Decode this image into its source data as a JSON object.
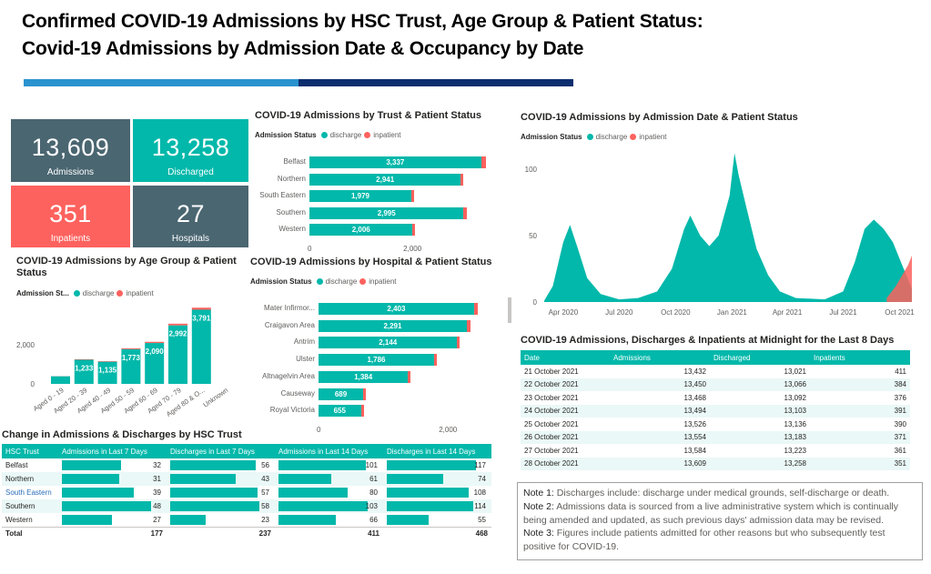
{
  "header": {
    "title_line1": "Confirmed COVID-19 Admissions by HSC Trust, Age Group & Patient Status:",
    "title_line2": "Covid-19 Admissions by Admission Date & Occupancy by Date"
  },
  "kpis": [
    {
      "value": "13,609",
      "label": "Admissions",
      "color": "#4a6671"
    },
    {
      "value": "13,258",
      "label": "Discharged",
      "color": "#01b8aa"
    },
    {
      "value": "351",
      "label": "Inpatients",
      "color": "#fd625e"
    },
    {
      "value": "27",
      "label": "Hospitals",
      "color": "#4a6671"
    }
  ],
  "legend": {
    "status_label": "Admission Status",
    "status_label_short": "Admission St...",
    "discharge": "discharge",
    "inpatient": "inpatient"
  },
  "colors": {
    "discharge": "#01b8aa",
    "inpatient": "#fd625e"
  },
  "chart_data": [
    {
      "type": "bar",
      "orientation": "horizontal",
      "title": "COVID-19 Admissions by Trust & Patient Status",
      "categories": [
        "Belfast",
        "Northern",
        "South Eastern",
        "Southern",
        "Western"
      ],
      "series": [
        {
          "name": "discharge",
          "values": [
            3337,
            2941,
            1979,
            2995,
            2006
          ]
        },
        {
          "name": "inpatient",
          "values": [
            95,
            50,
            40,
            72,
            36
          ]
        }
      ],
      "data_labels": [
        "3,337",
        "2,941",
        "1,979",
        "2,995",
        "2,006"
      ],
      "x_ticks": [
        "0",
        "2,000"
      ],
      "xlim": [
        0,
        3500
      ]
    },
    {
      "type": "bar",
      "orientation": "horizontal",
      "title": "COVID-19 Admissions by Hospital & Patient Status",
      "categories": [
        "Mater Infirmor...",
        "Craigavon Area",
        "Antrim",
        "Ulster",
        "Altnagelvin Area",
        "Causeway",
        "Royal Victoria"
      ],
      "series": [
        {
          "name": "discharge",
          "values": [
            2403,
            2291,
            2144,
            1786,
            1384,
            689,
            655
          ]
        },
        {
          "name": "inpatient",
          "values": [
            60,
            55,
            40,
            40,
            38,
            8,
            25
          ]
        }
      ],
      "data_labels": [
        "2,403",
        "2,291",
        "2,144",
        "1,786",
        "1,384",
        "689",
        "655"
      ],
      "x_ticks": [
        "0",
        "2,000"
      ],
      "xlim": [
        0,
        2700
      ]
    },
    {
      "type": "bar",
      "title": "COVID-19 Admissions by Age Group & Patient Status",
      "categories": [
        "Aged 0 - 19",
        "Aged 20 - 39",
        "Aged 40 - 49",
        "Aged 50 - 59",
        "Aged 60 - 69",
        "Aged 70 - 79",
        "Aged 80 & O...",
        "Unknown"
      ],
      "series": [
        {
          "name": "discharge",
          "values": [
            390,
            1233,
            1135,
            1773,
            2090,
            2992,
            3791,
            0
          ]
        },
        {
          "name": "inpatient",
          "values": [
            5,
            25,
            25,
            45,
            60,
            85,
            105,
            0
          ]
        }
      ],
      "data_labels": [
        "",
        "1,233",
        "1,135",
        "1,773",
        "2,090",
        "2,992",
        "3,791",
        ""
      ],
      "y_ticks": [
        "0",
        "2,000",
        "4,000"
      ],
      "ylim": [
        0,
        4000
      ]
    },
    {
      "type": "area",
      "title": "COVID-19 Admissions by Admission Date & Patient Status",
      "x_ticks": [
        "Apr 2020",
        "Jul 2020",
        "Oct 2020",
        "Jan 2021",
        "Apr 2021",
        "Jul 2021",
        "Oct 2021"
      ],
      "y_ticks": [
        "0",
        "50",
        "100"
      ],
      "ylim": [
        0,
        115
      ],
      "series": [
        {
          "name": "discharge",
          "points": [
            [
              "2020-03-01",
              1
            ],
            [
              "2020-03-15",
              12
            ],
            [
              "2020-04-01",
              45
            ],
            [
              "2020-04-12",
              58
            ],
            [
              "2020-04-25",
              40
            ],
            [
              "2020-05-10",
              18
            ],
            [
              "2020-06-01",
              6
            ],
            [
              "2020-07-01",
              2
            ],
            [
              "2020-08-01",
              3
            ],
            [
              "2020-09-01",
              8
            ],
            [
              "2020-09-25",
              25
            ],
            [
              "2020-10-15",
              55
            ],
            [
              "2020-10-25",
              65
            ],
            [
              "2020-11-10",
              50
            ],
            [
              "2020-11-25",
              42
            ],
            [
              "2020-12-10",
              50
            ],
            [
              "2020-12-28",
              80
            ],
            [
              "2021-01-05",
              112
            ],
            [
              "2021-01-12",
              95
            ],
            [
              "2021-01-25",
              70
            ],
            [
              "2021-02-10",
              40
            ],
            [
              "2021-03-01",
              20
            ],
            [
              "2021-03-20",
              8
            ],
            [
              "2021-04-15",
              3
            ],
            [
              "2021-06-01",
              2
            ],
            [
              "2021-07-01",
              8
            ],
            [
              "2021-07-20",
              30
            ],
            [
              "2021-08-05",
              55
            ],
            [
              "2021-08-20",
              62
            ],
            [
              "2021-09-05",
              55
            ],
            [
              "2021-09-20",
              45
            ],
            [
              "2021-10-05",
              28
            ],
            [
              "2021-10-21",
              10
            ]
          ]
        },
        {
          "name": "inpatient",
          "points": [
            [
              "2021-09-10",
              3
            ],
            [
              "2021-09-25",
              12
            ],
            [
              "2021-10-05",
              20
            ],
            [
              "2021-10-15",
              28
            ],
            [
              "2021-10-21",
              35
            ]
          ]
        }
      ]
    },
    {
      "type": "table",
      "title": "Change in Admissions & Discharges by HSC Trust",
      "columns": [
        "HSC Trust",
        "Admissions in Last 7 Days",
        "Discharges in Last 7 Days",
        "Admissions in Last 14 Days",
        "Discharges in Last 14 Days"
      ],
      "rows": [
        [
          "Belfast",
          32,
          56,
          101,
          117
        ],
        [
          "Northern",
          31,
          43,
          61,
          74
        ],
        [
          "South Eastern",
          39,
          57,
          80,
          108
        ],
        [
          "Southern",
          48,
          58,
          103,
          114
        ],
        [
          "Western",
          27,
          23,
          66,
          55
        ]
      ],
      "totals": [
        "Total",
        177,
        237,
        411,
        468
      ]
    },
    {
      "type": "table",
      "title": "COVID-19 Admissions, Discharges & Inpatients at Midnight for the Last 8 Days",
      "columns": [
        "Date",
        "Admissions",
        "Discharged",
        "Inpatients"
      ],
      "rows": [
        [
          "21 October 2021",
          "13,432",
          "13,021",
          "411"
        ],
        [
          "22 October 2021",
          "13,450",
          "13,066",
          "384"
        ],
        [
          "23 October 2021",
          "13,468",
          "13,092",
          "376"
        ],
        [
          "24 October 2021",
          "13,494",
          "13,103",
          "391"
        ],
        [
          "25 October 2021",
          "13,526",
          "13,136",
          "390"
        ],
        [
          "26 October 2021",
          "13,554",
          "13,183",
          "371"
        ],
        [
          "27 October 2021",
          "13,584",
          "13,223",
          "361"
        ],
        [
          "28 October 2021",
          "13,609",
          "13,258",
          "351"
        ]
      ]
    }
  ],
  "notes": [
    {
      "label": "Note 1:",
      "text": "Discharges include: discharge under medical grounds, self-discharge or death."
    },
    {
      "label": "Note 2:",
      "text": "Admissions data is sourced from a live administrative system which is continually being amended and updated, as such previous days' admission data may be revised."
    },
    {
      "label": "Note 3:",
      "text": "Figures include patients admitted for other reasons but who subsequently test positive for COVID-19."
    }
  ]
}
